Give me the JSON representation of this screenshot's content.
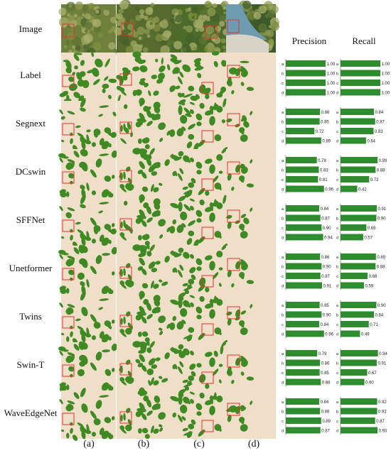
{
  "rows": [
    "Image",
    "Label",
    "Segnext",
    "DCswin",
    "SFFNet",
    "Unetformer",
    "Twins",
    "Swin-T",
    "WaveEdgeNet"
  ],
  "columns": [
    "(a)",
    "(b)",
    "(c)",
    "(d)"
  ],
  "metric_headers": [
    "Precision",
    "Recall"
  ],
  "bar_color": "#2e8b2e",
  "prediction_bg": "#efdfc9",
  "vegetation_color": "#3f8a22",
  "highlight_color": "#e8322b",
  "chart_data": {
    "type": "bar",
    "orientation": "horizontal",
    "categories": [
      "a",
      "b",
      "c",
      "d"
    ],
    "xlim": [
      0,
      1
    ],
    "panels": [
      {
        "row": "Label",
        "precision": [
          "1.00",
          "1.00",
          "1.00",
          "1.00"
        ],
        "recall": [
          "1.00",
          "1.00",
          "1.00",
          "1.00"
        ]
      },
      {
        "row": "Segnext",
        "precision": [
          "0.86",
          "0.85",
          "0.72",
          "0.89"
        ],
        "recall": [
          "0.84",
          "0.87",
          "0.83",
          "0.64"
        ]
      },
      {
        "row": "DCswin",
        "precision": [
          "0.78",
          "0.83",
          "0.81",
          "0.96"
        ],
        "recall": [
          "0.93",
          "0.88",
          "0.72",
          "0.42"
        ]
      },
      {
        "row": "SFFNet",
        "precision": [
          "0.84",
          "0.87",
          "0.90",
          "0.94"
        ],
        "recall": [
          "0.91",
          "0.90",
          "0.65",
          "0.57"
        ]
      },
      {
        "row": "Unetformer",
        "precision": [
          "0.86",
          "0.90",
          "0.87",
          "0.91"
        ],
        "recall": [
          "0.89",
          "0.88",
          "0.68",
          "0.59"
        ]
      },
      {
        "row": "Twins",
        "precision": [
          "0.85",
          "0.90",
          "0.84",
          "0.96"
        ],
        "recall": [
          "0.90",
          "0.84",
          "0.71",
          "0.49"
        ]
      },
      {
        "row": "Swin-T",
        "precision": [
          "0.79",
          "0.86",
          "0.85",
          "0.88"
        ],
        "recall": [
          "0.94",
          "0.91",
          "0.67",
          "0.60"
        ]
      },
      {
        "row": "WaveEdgeNet",
        "precision": [
          "0.84",
          "0.86",
          "0.89",
          "0.87"
        ],
        "recall": [
          "0.92",
          "0.92",
          "0.87",
          "0.93"
        ]
      }
    ]
  }
}
